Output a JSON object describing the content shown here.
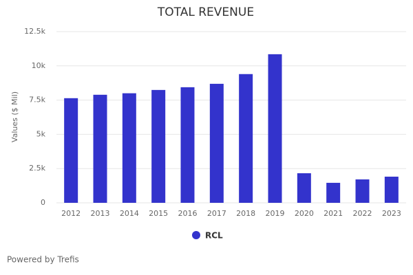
{
  "chart_data": {
    "type": "bar",
    "title": "TOTAL REVENUE",
    "y_label": "Values ($ Mil)",
    "categories": [
      "2012",
      "2013",
      "2014",
      "2015",
      "2016",
      "2017",
      "2018",
      "2019",
      "2020",
      "2021",
      "2022",
      "2023"
    ],
    "series": [
      {
        "name": "RCL",
        "color": "#3333cc",
        "values": [
          7640,
          7890,
          8000,
          8240,
          8440,
          8690,
          9400,
          10850,
          2160,
          1460,
          1710,
          1910
        ]
      }
    ],
    "ylim": [
      0,
      12500
    ],
    "yticks": [
      0,
      {
        "value": 2500,
        "label": "2.5k"
      },
      {
        "value": 5000,
        "label": "5k"
      },
      {
        "value": 7500,
        "label": "7.5k"
      },
      {
        "value": 10000,
        "label": "10k"
      },
      {
        "value": 12500,
        "label": "12.5k"
      }
    ],
    "grid": true,
    "legend": "bottom",
    "credit": "Powered by Trefis"
  }
}
